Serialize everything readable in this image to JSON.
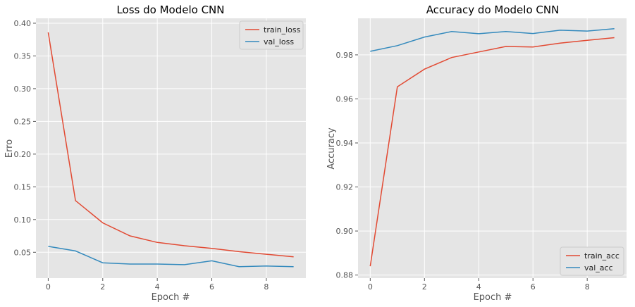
{
  "chart_data": [
    {
      "type": "line",
      "title": "Loss do Modelo CNN",
      "xlabel": "Epoch #",
      "ylabel": "Erro",
      "x": [
        0,
        1,
        2,
        3,
        4,
        5,
        6,
        7,
        8,
        9
      ],
      "xticks": [
        0,
        2,
        4,
        6,
        8
      ],
      "xlim": [
        -0.45,
        9.45
      ],
      "yticks": [
        0.05,
        0.1,
        0.15,
        0.2,
        0.25,
        0.3,
        0.35,
        0.4
      ],
      "ytick_labels": [
        "0.05",
        "0.10",
        "0.15",
        "0.20",
        "0.25",
        "0.30",
        "0.35",
        "0.40"
      ],
      "ylim": [
        0.0105,
        0.4075
      ],
      "legend": "top-right",
      "grid": true,
      "series": [
        {
          "name": "train_loss",
          "color": "#E24A33",
          "values": [
            0.386,
            0.129,
            0.095,
            0.075,
            0.065,
            0.06,
            0.056,
            0.051,
            0.047,
            0.043
          ]
        },
        {
          "name": "val_loss",
          "color": "#348ABD",
          "values": [
            0.059,
            0.052,
            0.034,
            0.032,
            0.032,
            0.031,
            0.037,
            0.028,
            0.029,
            0.028
          ]
        }
      ]
    },
    {
      "type": "line",
      "title": "Accuracy do Modelo CNN",
      "xlabel": "Epoch #",
      "ylabel": "Accuracy",
      "x": [
        0,
        1,
        2,
        3,
        4,
        5,
        6,
        7,
        8,
        9
      ],
      "xticks": [
        0,
        2,
        4,
        6,
        8
      ],
      "xlim": [
        -0.45,
        9.45
      ],
      "yticks": [
        0.88,
        0.9,
        0.92,
        0.94,
        0.96,
        0.98
      ],
      "ytick_labels": [
        "0.88",
        "0.90",
        "0.92",
        "0.94",
        "0.96",
        "0.98"
      ],
      "ylim": [
        0.8786,
        0.9966
      ],
      "legend": "bottom-right",
      "grid": true,
      "series": [
        {
          "name": "train_acc",
          "color": "#E24A33",
          "values": [
            0.884,
            0.9655,
            0.9735,
            0.9788,
            0.9813,
            0.9838,
            0.9836,
            0.9853,
            0.9866,
            0.9878
          ]
        },
        {
          "name": "val_acc",
          "color": "#348ABD",
          "values": [
            0.9816,
            0.9842,
            0.9881,
            0.9906,
            0.9896,
            0.9906,
            0.9897,
            0.9912,
            0.9908,
            0.9919
          ]
        }
      ]
    }
  ]
}
